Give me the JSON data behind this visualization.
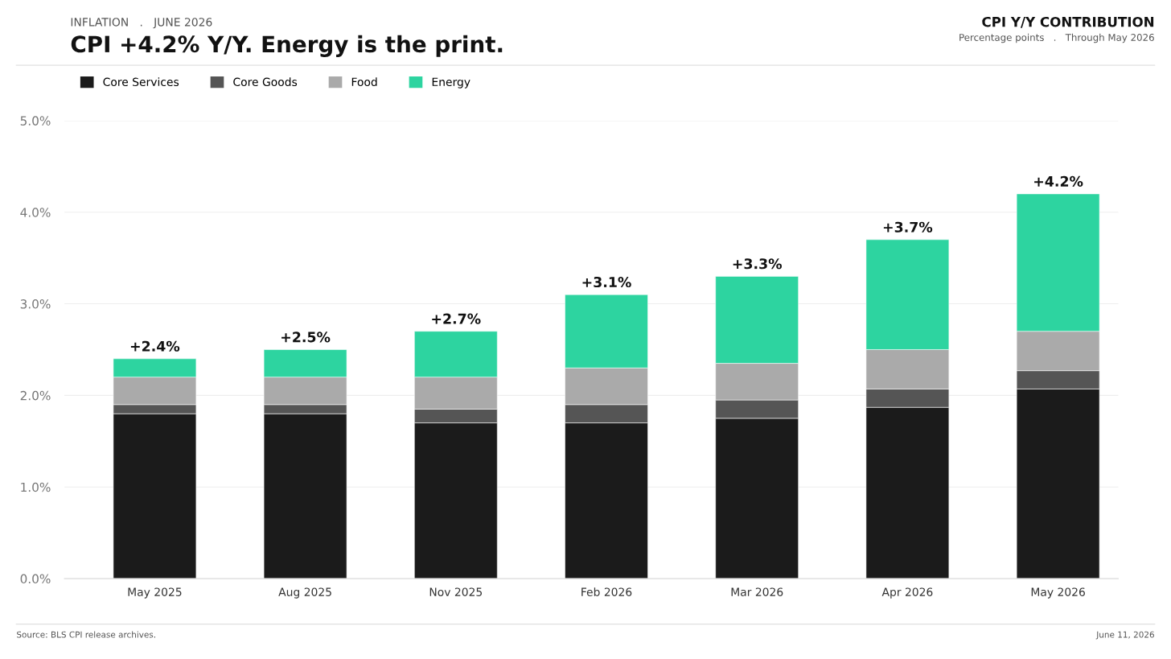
{
  "chart_data": {
    "type": "bar",
    "stacked": true,
    "title": "CPI +4.2% Y/Y. Energy is the print.",
    "subtitle": "INFLATION   .   JUNE 2026",
    "annotations": [
      "CPI Y/Y CONTRIBUTION",
      "Percentage points   .   Through May 2026",
      "Source: BLS CPI release archives.",
      "June 11, 2026"
    ],
    "categories": [
      "May 2025",
      "Aug 2025",
      "Nov 2025",
      "Feb 2026",
      "Mar 2026",
      "Apr 2026",
      "May 2026"
    ],
    "series": [
      {
        "name": "Core Services",
        "color": "#1b1b1b",
        "values": [
          1.8,
          1.8,
          1.7,
          1.7,
          1.75,
          1.87,
          2.07
        ]
      },
      {
        "name": "Core Goods",
        "color": "#555555",
        "values": [
          0.1,
          0.1,
          0.15,
          0.2,
          0.2,
          0.2,
          0.2
        ]
      },
      {
        "name": "Food",
        "color": "#aaaaaa",
        "values": [
          0.3,
          0.3,
          0.35,
          0.4,
          0.4,
          0.43,
          0.43
        ]
      },
      {
        "name": "Energy",
        "color": "#2dd4a0",
        "values": [
          0.2,
          0.3,
          0.5,
          0.8,
          0.95,
          1.2,
          1.5
        ]
      }
    ],
    "totals": [
      "+2.4%",
      "+2.5%",
      "+2.7%",
      "+3.1%",
      "+3.3%",
      "+3.7%",
      "+4.2%"
    ],
    "ylim": [
      0,
      5
    ],
    "yticks": [
      {
        "value": 0,
        "label": "0.0%"
      },
      {
        "value": 1,
        "label": "1.0%"
      },
      {
        "value": 2,
        "label": "2.0%"
      },
      {
        "value": 3,
        "label": "3.0%"
      },
      {
        "value": 4,
        "label": "4.0%"
      },
      {
        "value": 5,
        "label": "5.0%"
      }
    ],
    "grid": "y",
    "legend": "top left"
  }
}
